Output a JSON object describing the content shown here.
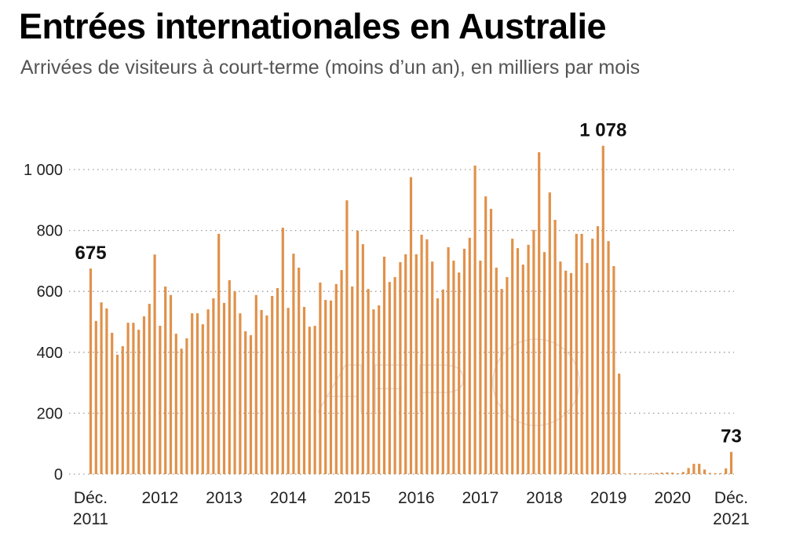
{
  "chart_data": {
    "type": "bar",
    "title": "Entrées internationales en Australie",
    "subtitle": "Arrivées de visiteurs à court-terme (moins d’un an), en milliers par mois",
    "xlabel": "",
    "ylabel": "",
    "ylim": [
      0,
      1000
    ],
    "yticks": [
      {
        "value": 0,
        "label": "0"
      },
      {
        "value": 200,
        "label": "200"
      },
      {
        "value": 400,
        "label": "400"
      },
      {
        "value": 600,
        "label": "600"
      },
      {
        "value": 800,
        "label": "800"
      },
      {
        "value": 1000,
        "label": "1 000"
      }
    ],
    "xticks": [
      {
        "index": 0,
        "line1": "Déc.",
        "line2": "2011"
      },
      {
        "index": 13,
        "line1": "2012",
        "line2": ""
      },
      {
        "index": 25,
        "line1": "2013",
        "line2": ""
      },
      {
        "index": 37,
        "line1": "2014",
        "line2": ""
      },
      {
        "index": 49,
        "line1": "2015",
        "line2": ""
      },
      {
        "index": 61,
        "line1": "2016",
        "line2": ""
      },
      {
        "index": 73,
        "line1": "2017",
        "line2": ""
      },
      {
        "index": 85,
        "line1": "2018",
        "line2": ""
      },
      {
        "index": 97,
        "line1": "2019",
        "line2": ""
      },
      {
        "index": 109,
        "line1": "2020",
        "line2": ""
      },
      {
        "index": 120,
        "line1": "Déc.",
        "line2": "2021"
      }
    ],
    "grid": true,
    "x_start": "2011-12",
    "x_end": "2021-12",
    "frequency": "monthly",
    "values": [
      675,
      503,
      564,
      544,
      464,
      392,
      420,
      497,
      497,
      474,
      518,
      559,
      721,
      487,
      616,
      588,
      461,
      412,
      446,
      528,
      528,
      492,
      541,
      577,
      789,
      562,
      637,
      600,
      528,
      469,
      456,
      588,
      539,
      521,
      585,
      611,
      809,
      546,
      724,
      678,
      549,
      484,
      487,
      629,
      572,
      570,
      624,
      670,
      899,
      616,
      799,
      755,
      608,
      541,
      554,
      714,
      631,
      647,
      696,
      722,
      975,
      722,
      786,
      771,
      698,
      577,
      606,
      745,
      701,
      662,
      740,
      776,
      1013,
      701,
      912,
      871,
      678,
      608,
      647,
      773,
      742,
      688,
      753,
      802,
      1057,
      729,
      925,
      835,
      698,
      668,
      660,
      789,
      789,
      693,
      773,
      814,
      1078,
      765,
      683,
      330,
      2,
      2,
      3,
      2,
      2,
      3,
      4,
      5,
      6,
      5,
      3,
      7,
      20,
      34,
      34,
      15,
      4,
      3,
      3,
      19,
      73
    ],
    "annotations": [
      {
        "index": 0,
        "label": "675"
      },
      {
        "index": 96,
        "label": "1 078"
      },
      {
        "index": 120,
        "label": "73"
      }
    ],
    "bar_color": "#e0914a",
    "grid_color": "#9a9a9a"
  }
}
